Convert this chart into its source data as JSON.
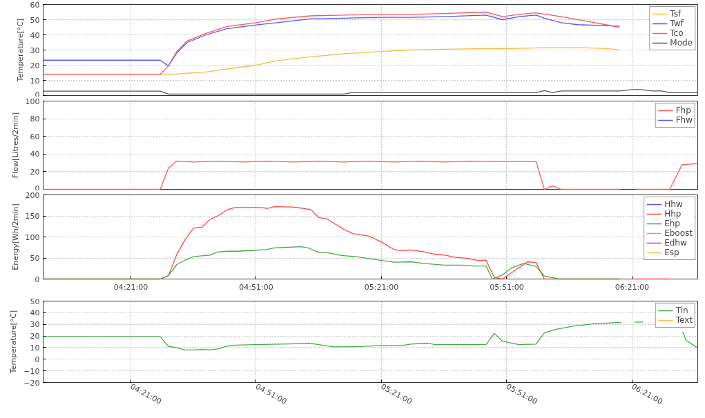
{
  "chart_data": [
    {
      "type": "line",
      "ylabel": "Temperature[°C]",
      "xlim": [
        4.0,
        6.612
      ],
      "xticks": [
        {
          "value": 4.35,
          "label": null
        },
        {
          "value": 4.85,
          "label": null
        },
        {
          "value": 5.35,
          "label": null
        },
        {
          "value": 5.85,
          "label": null
        },
        {
          "value": 6.35,
          "label": null
        }
      ],
      "ylim": [
        0,
        60
      ],
      "yticks": [
        0,
        10,
        20,
        30,
        40,
        50,
        60
      ],
      "grid": true,
      "legend": "top right",
      "tick_labels": "y",
      "series": [
        {
          "name": "Tsf",
          "color": "#ffbb44",
          "x": [
            4.0,
            4.467,
            4.533,
            4.65,
            4.733,
            4.85,
            4.933,
            5.067,
            5.2,
            5.35,
            5.467,
            5.6,
            5.767,
            5.867,
            6.0,
            6.15,
            6.25,
            6.3
          ],
          "values": [
            14,
            14,
            14.2,
            15.5,
            17.5,
            20,
            23,
            25.5,
            27.5,
            29,
            30,
            30.5,
            31,
            31,
            31.5,
            31.5,
            31,
            30
          ]
        },
        {
          "name": "Twf",
          "color": "#5555ff",
          "x": [
            4.0,
            4.467,
            4.5,
            4.533,
            4.575,
            4.65,
            4.733,
            4.85,
            4.933,
            5.067,
            5.2,
            5.35,
            5.467,
            5.6,
            5.767,
            5.833,
            5.9,
            5.967,
            6.0,
            6.067,
            6.133,
            6.3
          ],
          "values": [
            23.3,
            23.3,
            19.5,
            28,
            35,
            40,
            44,
            46.5,
            48,
            50.5,
            51,
            51.5,
            51.5,
            52,
            53,
            50,
            52,
            53,
            51,
            48,
            46.7,
            45.7
          ]
        },
        {
          "name": "Tco",
          "color": "#ff5555",
          "x": [
            4.0,
            4.467,
            4.5,
            4.533,
            4.575,
            4.65,
            4.733,
            4.85,
            4.933,
            5.067,
            5.2,
            5.35,
            5.467,
            5.6,
            5.767,
            5.833,
            5.9,
            5.967,
            6.067,
            6.167,
            6.3
          ],
          "values": [
            14,
            14,
            19.5,
            29,
            36,
            41,
            45.5,
            48,
            50.5,
            52.5,
            53,
            53.5,
            53.5,
            54,
            55,
            52,
            53.5,
            54.5,
            52,
            49,
            45
          ]
        },
        {
          "name": "Mode",
          "color": "#555555",
          "x": [
            4.0,
            4.467,
            4.5,
            5.2,
            5.233,
            5.967,
            6.0,
            6.033,
            6.067,
            6.3,
            6.35,
            6.383,
            6.433,
            6.467,
            6.5,
            6.612
          ],
          "values": [
            2.9,
            2.9,
            1,
            1,
            2,
            2,
            3.2,
            2,
            3,
            3,
            3.9,
            3.9,
            3,
            3,
            2,
            2
          ]
        }
      ]
    },
    {
      "type": "line",
      "ylabel": "Flow[Litres/2min]",
      "xlim": [
        4.0,
        6.612
      ],
      "xticks": [
        {
          "value": 4.35,
          "label": null
        },
        {
          "value": 4.85,
          "label": null
        },
        {
          "value": 5.35,
          "label": null
        },
        {
          "value": 5.85,
          "label": null
        },
        {
          "value": 6.35,
          "label": null
        }
      ],
      "ylim": [
        0,
        100
      ],
      "yticks": [
        0,
        20,
        40,
        60,
        80,
        100
      ],
      "grid": true,
      "legend": "top right",
      "tick_labels": "y",
      "series": [
        {
          "name": "Fhp",
          "color": "#ff5555",
          "x": [
            4.0,
            4.467,
            4.5,
            4.533,
            4.6,
            4.7,
            4.8,
            4.9,
            5.0,
            5.1,
            5.2,
            5.3,
            5.4,
            5.5,
            5.6,
            5.7,
            5.8,
            5.967,
            6.0,
            6.033,
            6.067,
            6.3,
            6.333,
            6.367,
            6.5,
            6.55,
            6.612
          ],
          "values": [
            0,
            0,
            24,
            32,
            31,
            32,
            31,
            32,
            31,
            32,
            31,
            32,
            31,
            32,
            31,
            32,
            31.5,
            31.5,
            0,
            4,
            0,
            0,
            null,
            0,
            0,
            28,
            29
          ]
        },
        {
          "name": "Fhw",
          "color": "#5555ff"
        }
      ]
    },
    {
      "type": "line",
      "ylabel": "Energy[Wh/2min]",
      "xlim": [
        4.0,
        6.612
      ],
      "xticks": [
        {
          "value": 4.35,
          "label": "04:21:00"
        },
        {
          "value": 4.85,
          "label": "04:51:00"
        },
        {
          "value": 5.35,
          "label": "05:21:00"
        },
        {
          "value": 5.85,
          "label": "05:51:00"
        },
        {
          "value": 6.35,
          "label": "06:21:00"
        }
      ],
      "ylim": [
        0,
        200
      ],
      "yticks": [
        0,
        50,
        100,
        150,
        200
      ],
      "grid": true,
      "legend": "top right",
      "series": [
        {
          "name": "Hhw",
          "color": "#5555ff"
        },
        {
          "name": "Hhp",
          "color": "#ff4444",
          "x": [
            4.0,
            4.467,
            4.5,
            4.533,
            4.567,
            4.6,
            4.633,
            4.667,
            4.697,
            4.733,
            4.765,
            4.868,
            4.895,
            4.923,
            4.995,
            5.037,
            5.068,
            5.1,
            5.132,
            5.167,
            5.2,
            5.235,
            5.3,
            5.35,
            5.4,
            5.433,
            5.467,
            5.517,
            5.562,
            5.6,
            5.642,
            5.697,
            5.733,
            5.767,
            5.8,
            5.833,
            5.933,
            5.967,
            6.0,
            6.3,
            6.333,
            6.367,
            6.5
          ],
          "values": [
            0,
            0,
            8,
            58,
            94,
            121,
            123,
            142,
            150,
            164,
            170,
            170,
            168,
            172,
            171,
            168,
            165,
            146,
            143,
            130,
            118,
            108,
            102,
            88,
            70,
            67,
            69,
            65,
            59,
            57,
            52,
            49,
            44,
            45,
            4,
            0,
            41,
            39,
            0,
            0,
            null,
            0,
            0
          ]
        },
        {
          "name": "Ehp",
          "color": "#44aa44",
          "x": [
            4.0,
            4.467,
            4.5,
            4.533,
            4.567,
            4.6,
            4.633,
            4.667,
            4.697,
            4.733,
            4.77,
            4.84,
            4.89,
            4.923,
            4.96,
            5.03,
            5.063,
            5.1,
            5.132,
            5.19,
            5.25,
            5.35,
            5.4,
            5.467,
            5.517,
            5.6,
            5.67,
            5.717,
            5.767,
            5.792,
            5.833,
            5.87,
            5.917,
            5.967,
            6.0,
            6.06,
            6.3
          ],
          "values": [
            0,
            0,
            8,
            34,
            45,
            53,
            55,
            57,
            64,
            66,
            66,
            68,
            70,
            74,
            75,
            77,
            73,
            63,
            63,
            56,
            53,
            44,
            40,
            41,
            37,
            33,
            33,
            31,
            31,
            0,
            10,
            27,
            37,
            30,
            7,
            0,
            0
          ]
        },
        {
          "name": "Eboost",
          "color": "#aaaaaa"
        },
        {
          "name": "Edhw",
          "color": "#bb44bb"
        },
        {
          "name": "Esp",
          "color": "#ffbb44"
        }
      ]
    },
    {
      "type": "line",
      "ylabel": "Temperature[°C]",
      "xlim": [
        4.0,
        6.612
      ],
      "xticks": [
        {
          "value": 4.35,
          "label": "04:21:00"
        },
        {
          "value": 4.85,
          "label": "04:51:00"
        },
        {
          "value": 5.35,
          "label": "05:21:00"
        },
        {
          "value": 5.85,
          "label": "05:51:00"
        },
        {
          "value": 6.35,
          "label": "06:21:00"
        }
      ],
      "ylim": [
        -20,
        50
      ],
      "yticks": [
        -20,
        -10,
        0,
        10,
        20,
        30,
        40,
        50
      ],
      "grid": true,
      "legend": "top right",
      "series": [
        {
          "name": "Tin",
          "color": "#44aa44",
          "x": [
            4.0,
            4.467,
            4.5,
            4.533,
            4.567,
            4.6,
            4.633,
            4.667,
            4.697,
            4.733,
            4.77,
            4.84,
            4.98,
            5.03,
            5.063,
            5.1,
            5.16,
            5.25,
            5.35,
            5.433,
            5.467,
            5.533,
            5.567,
            5.767,
            5.8,
            5.833,
            5.87,
            5.9,
            5.967,
            6.0,
            6.045,
            6.117,
            6.207,
            6.307,
            6.333,
            6.36,
            6.395,
            6.4,
            6.552,
            6.565,
            6.612
          ],
          "values": [
            19.4,
            19.4,
            11,
            9.9,
            7.9,
            7.9,
            8.4,
            8.1,
            8.8,
            11.3,
            12.1,
            12.6,
            13.1,
            13.5,
            13.8,
            12.6,
            10.6,
            10.8,
            11.8,
            11.8,
            13,
            13.8,
            12.6,
            12.6,
            22.2,
            15.5,
            13.8,
            12.6,
            13,
            22.7,
            25.6,
            28.6,
            30.6,
            31.6,
            null,
            31.8,
            32,
            null,
            23.6,
            16.3,
            9.6
          ]
        },
        {
          "name": "Text",
          "color": "#ffbb44"
        }
      ]
    }
  ]
}
